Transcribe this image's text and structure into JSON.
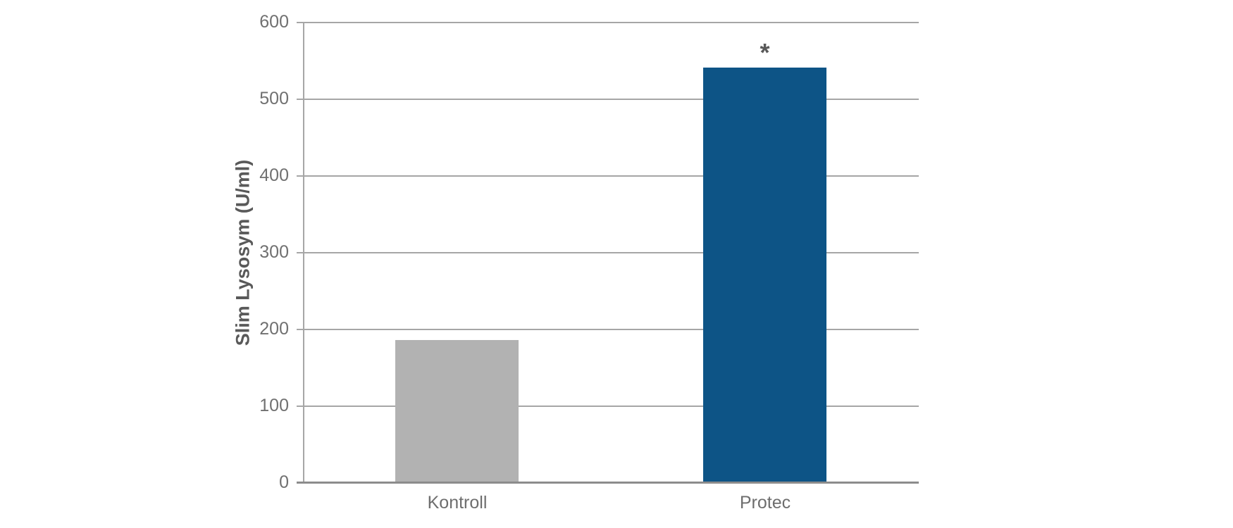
{
  "chart_data": {
    "type": "bar",
    "title": "",
    "ylabel": "Slim Lysosym (U/ml)",
    "xlabel": "",
    "categories": [
      "Kontroll",
      "Protec"
    ],
    "values": [
      186,
      541
    ],
    "bar_colors": [
      "#b2b2b2",
      "#0d5486"
    ],
    "annotations": [
      {
        "category_index": 1,
        "text": "*"
      }
    ],
    "ylim": [
      0,
      600
    ],
    "yticks": [
      0,
      100,
      200,
      300,
      400,
      500,
      600
    ],
    "grid": true,
    "legend": "none",
    "background": "#ffffff",
    "grid_color": "#a6a6a6",
    "axis_color": "#8c8c8c",
    "tick_text_color": "#707070",
    "label_text_color": "#595959"
  }
}
